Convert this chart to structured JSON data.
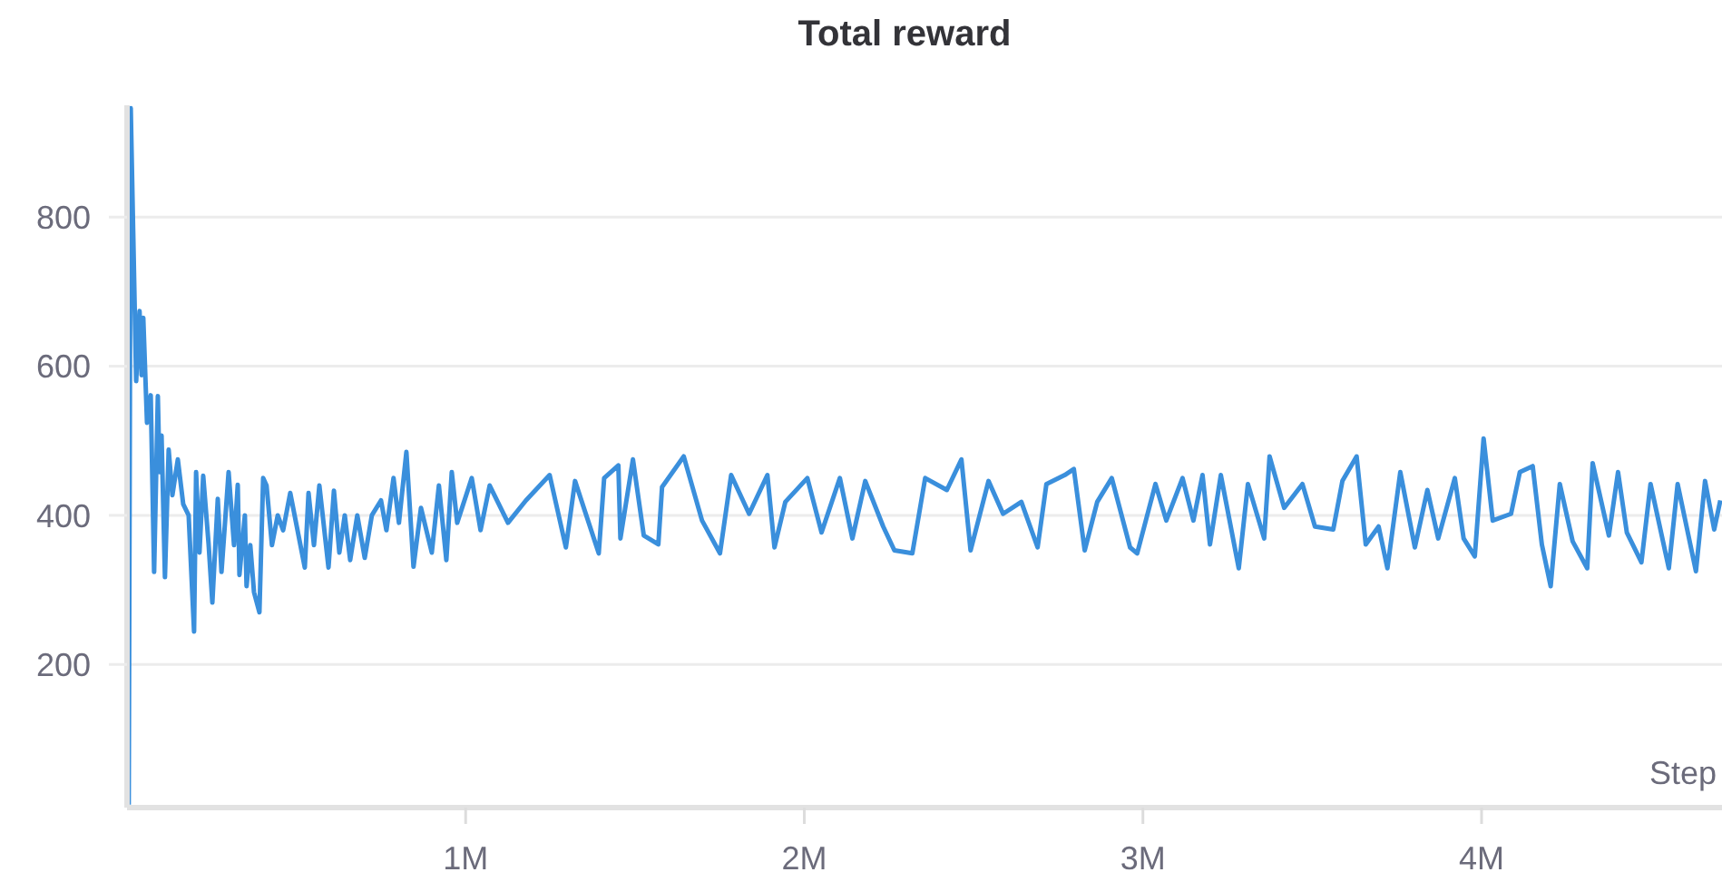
{
  "chart_data": {
    "type": "line",
    "title": "Total reward",
    "xlabel": "Step",
    "x": [
      5000,
      11000,
      27000,
      37000,
      43000,
      48000,
      59000,
      70000,
      80000,
      91000,
      96000,
      102000,
      112000,
      123000,
      134000,
      150000,
      166000,
      182000,
      198000,
      204000,
      214000,
      225000,
      241000,
      252000,
      268000,
      279000,
      300000,
      316000,
      327000,
      332000,
      348000,
      353000,
      364000,
      375000,
      391000,
      402000,
      412000,
      428000,
      445000,
      461000,
      482000,
      525000,
      536000,
      552000,
      568000,
      595000,
      611000,
      627000,
      643000,
      659000,
      680000,
      702000,
      723000,
      750000,
      766000,
      787000,
      803000,
      825000,
      846000,
      868000,
      900000,
      921000,
      943000,
      959000,
      975000,
      1018000,
      1044000,
      1071000,
      1125000,
      1178000,
      1248000,
      1296000,
      1323000,
      1393000,
      1409000,
      1451000,
      1457000,
      1494000,
      1526000,
      1569000,
      1580000,
      1644000,
      1698000,
      1751000,
      1784000,
      1837000,
      1891000,
      1912000,
      1944000,
      2009000,
      2051000,
      2105000,
      2142000,
      2180000,
      2233000,
      2266000,
      2319000,
      2357000,
      2421000,
      2464000,
      2491000,
      2544000,
      2587000,
      2641000,
      2689000,
      2715000,
      2769000,
      2796000,
      2828000,
      2865000,
      2908000,
      2962000,
      2983000,
      3037000,
      3069000,
      3117000,
      3149000,
      3176000,
      3198000,
      3230000,
      3283000,
      3310000,
      3358000,
      3374000,
      3417000,
      3471000,
      3508000,
      3562000,
      3589000,
      3631000,
      3658000,
      3696000,
      3722000,
      3760000,
      3803000,
      3840000,
      3872000,
      3921000,
      3947000,
      3980000,
      4006000,
      4033000,
      4087000,
      4113000,
      4151000,
      4178000,
      4204000,
      4231000,
      4269000,
      4312000,
      4328000,
      4376000,
      4403000,
      4429000,
      4472000,
      4499000,
      4553000,
      4579000,
      4633000,
      4660000,
      4687000,
      4705000
    ],
    "series": [
      {
        "color": "#3a8fdc",
        "values": [
          12,
          946,
          580,
          674,
          588,
          665,
          524,
          561,
          324,
          560,
          458,
          507,
          317,
          488,
          427,
          475,
          415,
          400,
          244,
          458,
          350,
          453,
          361,
          283,
          422,
          324,
          458,
          360,
          441,
          320,
          400,
          305,
          360,
          297,
          270,
          450,
          440,
          360,
          400,
          380,
          430,
          330,
          430,
          360,
          440,
          330,
          433,
          350,
          400,
          340,
          400,
          343,
          400,
          420,
          380,
          450,
          390,
          485,
          331,
          410,
          350,
          440,
          340,
          458,
          390,
          450,
          380,
          440,
          390,
          420,
          454,
          357,
          446,
          349,
          450,
          467,
          369,
          475,
          373,
          361,
          438,
          479,
          393,
          349,
          454,
          402,
          454,
          357,
          418,
          450,
          377,
          450,
          369,
          446,
          385,
          353,
          349,
          450,
          434,
          475,
          353,
          446,
          402,
          418,
          357,
          442,
          454,
          462,
          353,
          418,
          450,
          357,
          349,
          442,
          393,
          450,
          393,
          454,
          361,
          454,
          329,
          442,
          369,
          479,
          410,
          442,
          385,
          381,
          446,
          479,
          361,
          385,
          329,
          458,
          357,
          434,
          369,
          450,
          369,
          345,
          503,
          393,
          402,
          458,
          466,
          361,
          305,
          442,
          365,
          329,
          470,
          373,
          458,
          377,
          337,
          442,
          329,
          442,
          325,
          446,
          381,
          420
        ]
      }
    ],
    "xlim": [
      0,
      4710000
    ],
    "xticks": [
      {
        "value": 1000000,
        "label": "1M"
      },
      {
        "value": 2000000,
        "label": "2M"
      },
      {
        "value": 3000000,
        "label": "3M"
      },
      {
        "value": 4000000,
        "label": "4M"
      }
    ],
    "ylim": [
      8,
      950
    ],
    "yticks": [
      200,
      400,
      600,
      800
    ],
    "grid": "y",
    "line_style": "solid"
  }
}
